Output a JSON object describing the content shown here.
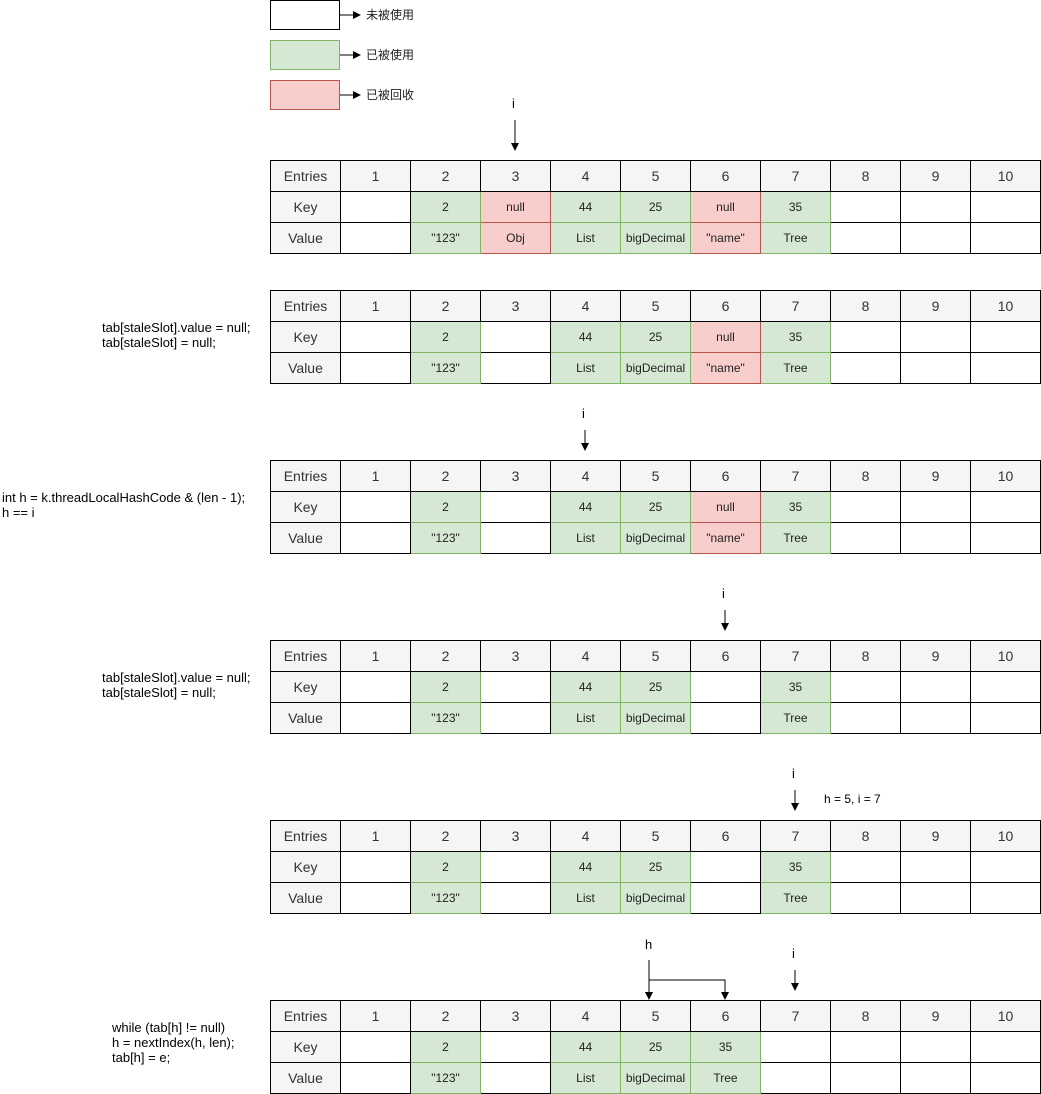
{
  "legend": [
    {
      "label": "未被使用",
      "state": "empty"
    },
    {
      "label": "已被使用",
      "state": "used"
    },
    {
      "label": "已被回收",
      "state": "freed"
    }
  ],
  "colors": {
    "used_fill": "#d5e8d4",
    "used_border": "#82b366",
    "freed_fill": "#f8cecc",
    "freed_border": "#b85450",
    "empty_fill": "#ffffff",
    "header_fill": "#f5f5f5"
  },
  "row_labels": {
    "entries": "Entries",
    "key": "Key",
    "value": "Value"
  },
  "columns": [
    "1",
    "2",
    "3",
    "4",
    "5",
    "6",
    "7",
    "8",
    "9",
    "10"
  ],
  "tables": [
    {
      "keys": [
        "",
        "2",
        "null",
        "44",
        "25",
        "null",
        "35",
        "",
        "",
        ""
      ],
      "values": [
        "",
        "\"123\"",
        "Obj",
        "List",
        "bigDecimal",
        "\"name\"",
        "Tree",
        "",
        "",
        ""
      ],
      "states": [
        "empty",
        "used",
        "freed",
        "used",
        "used",
        "freed",
        "used",
        "empty",
        "empty",
        "empty"
      ],
      "code": "",
      "pointer_label": "i",
      "pointer_col": 3,
      "note": ""
    },
    {
      "keys": [
        "",
        "2",
        "",
        "44",
        "25",
        "null",
        "35",
        "",
        "",
        ""
      ],
      "values": [
        "",
        "\"123\"",
        "",
        "List",
        "bigDecimal",
        "\"name\"",
        "Tree",
        "",
        "",
        ""
      ],
      "states": [
        "empty",
        "used",
        "empty",
        "used",
        "used",
        "freed",
        "used",
        "empty",
        "empty",
        "empty"
      ],
      "code": "tab[staleSlot].value = null;\ntab[staleSlot] = null;",
      "pointer_label": "",
      "pointer_col": null,
      "note": ""
    },
    {
      "keys": [
        "",
        "2",
        "",
        "44",
        "25",
        "null",
        "35",
        "",
        "",
        ""
      ],
      "values": [
        "",
        "\"123\"",
        "",
        "List",
        "bigDecimal",
        "\"name\"",
        "Tree",
        "",
        "",
        ""
      ],
      "states": [
        "empty",
        "used",
        "empty",
        "used",
        "used",
        "freed",
        "used",
        "empty",
        "empty",
        "empty"
      ],
      "code": "int h = k.threadLocalHashCode & (len - 1);\nh == i",
      "pointer_label": "i",
      "pointer_col": 4,
      "note": ""
    },
    {
      "keys": [
        "",
        "2",
        "",
        "44",
        "25",
        "",
        "35",
        "",
        "",
        ""
      ],
      "values": [
        "",
        "\"123\"",
        "",
        "List",
        "bigDecimal",
        "",
        "Tree",
        "",
        "",
        ""
      ],
      "states": [
        "empty",
        "used",
        "empty",
        "used",
        "used",
        "empty",
        "used",
        "empty",
        "empty",
        "empty"
      ],
      "code": "tab[staleSlot].value = null;\ntab[staleSlot] = null;",
      "pointer_label": "i",
      "pointer_col": 6,
      "note": ""
    },
    {
      "keys": [
        "",
        "2",
        "",
        "44",
        "25",
        "",
        "35",
        "",
        "",
        ""
      ],
      "values": [
        "",
        "\"123\"",
        "",
        "List",
        "bigDecimal",
        "",
        "Tree",
        "",
        "",
        ""
      ],
      "states": [
        "empty",
        "used",
        "empty",
        "used",
        "used",
        "empty",
        "used",
        "empty",
        "empty",
        "empty"
      ],
      "code": "",
      "pointer_label": "i",
      "pointer_col": 7,
      "note": "h = 5,  i = 7"
    },
    {
      "keys": [
        "",
        "2",
        "",
        "44",
        "25",
        "35",
        "",
        "",
        "",
        ""
      ],
      "values": [
        "",
        "\"123\"",
        "",
        "List",
        "bigDecimal",
        "Tree",
        "",
        "",
        "",
        ""
      ],
      "states": [
        "empty",
        "used",
        "empty",
        "used",
        "used",
        "used",
        "empty",
        "empty",
        "empty",
        "empty"
      ],
      "code": "while (tab[h] != null)\nh = nextIndex(h, len);\ntab[h] = e;",
      "pointer_label": "i",
      "pointer_col": 7,
      "note": "",
      "h_label": "h",
      "h_from_col": 5,
      "h_to_col": 6
    }
  ]
}
